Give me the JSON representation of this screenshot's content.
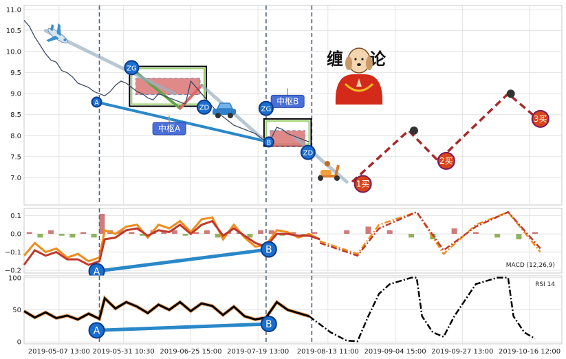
{
  "chart_data": [
    {
      "type": "line",
      "panel": "price",
      "ylim": [
        6.35,
        11.1
      ],
      "yticks": [
        "11.0",
        "10.5",
        "10.0",
        "9.5",
        "9.0",
        "8.5",
        "8.0",
        "7.5",
        "7.0"
      ],
      "ytick_values": [
        11.0,
        10.5,
        10.0,
        9.5,
        9.0,
        8.5,
        8.0,
        7.5,
        7.0
      ],
      "grid": true,
      "xrange": [
        0,
        100
      ],
      "vlines_dashed": [
        14,
        45,
        53.5
      ],
      "series": [
        {
          "role": "price-history",
          "color": "#3c4a66",
          "x": [
            0,
            1,
            2,
            3,
            4,
            5,
            6,
            7,
            8,
            9,
            10,
            11,
            12,
            13,
            14,
            15,
            16,
            17,
            18,
            19,
            20,
            21,
            22,
            23,
            24,
            25,
            26,
            27,
            28,
            29,
            30,
            31,
            32,
            33,
            34,
            35,
            36,
            37,
            38,
            39,
            40,
            41,
            42,
            43,
            44,
            45,
            46,
            47,
            48,
            49,
            50,
            51,
            52,
            53
          ],
          "y": [
            10.75,
            10.6,
            10.35,
            10.15,
            9.95,
            9.8,
            9.75,
            9.55,
            9.5,
            9.4,
            9.25,
            9.2,
            9.15,
            9.05,
            9.0,
            8.95,
            9.05,
            9.2,
            9.3,
            9.25,
            9.15,
            9.05,
            9.0,
            8.9,
            8.85,
            9.0,
            8.95,
            8.9,
            8.85,
            8.8,
            8.75,
            9.3,
            9.15,
            9.0,
            8.85,
            8.7,
            8.55,
            8.45,
            8.35,
            8.25,
            8.2,
            8.15,
            8.1,
            8.05,
            7.95,
            7.85,
            7.95,
            8.2,
            8.15,
            8.05,
            8.0,
            7.95,
            7.9,
            7.85
          ]
        },
        {
          "role": "projection",
          "color": "#a52a2a",
          "x": [
            61,
            71.5,
            77,
            90,
            95.5
          ],
          "y": [
            6.9,
            8.12,
            7.4,
            9.0,
            8.4
          ]
        }
      ],
      "stroke_segments": [
        {
          "color": "#2a88c8",
          "x": [
            13.5,
            45.5
          ],
          "y": [
            8.8,
            7.85
          ]
        },
        {
          "color": "#63a34a",
          "x": [
            20,
            29
          ],
          "y": [
            9.6,
            8.65
          ]
        },
        {
          "color": "#e06666",
          "x": [
            29,
            33
          ],
          "y": [
            8.65,
            9.2
          ]
        },
        {
          "color": "#9ab0c0",
          "x": [
            4,
            28
          ],
          "y": [
            10.5,
            9.0
          ]
        },
        {
          "color": "#9ab0c0",
          "x": [
            33,
            45
          ],
          "y": [
            9.2,
            7.85
          ]
        },
        {
          "color": "#9ab0c0",
          "x": [
            50.5,
            60
          ],
          "y": [
            7.95,
            6.9
          ]
        }
      ],
      "zones": [
        {
          "name": "中枢A",
          "x": [
            20,
            33.5
          ],
          "y": [
            8.75,
            9.6
          ],
          "fill": "#d96c6c"
        },
        {
          "name": "中枢B",
          "x": [
            45,
            53
          ],
          "y": [
            7.8,
            8.35
          ],
          "fill": "#d96c6c"
        }
      ],
      "points": [
        {
          "label": "A",
          "x": 13.5,
          "y": 8.8,
          "color": "#1a6ecf"
        },
        {
          "label": "ZG",
          "x": 20,
          "y": 9.62,
          "color": "#1a6ecf"
        },
        {
          "label": "ZD",
          "x": 33.5,
          "y": 8.68,
          "color": "#1a6ecf"
        },
        {
          "label": "ZG",
          "x": 45,
          "y": 8.65,
          "color": "#1a6ecf"
        },
        {
          "label": "B",
          "x": 45.5,
          "y": 7.85,
          "color": "#1a6ecf"
        },
        {
          "label": "ZD",
          "x": 52.8,
          "y": 7.6,
          "color": "#1a6ecf"
        },
        {
          "label": "1买",
          "x": 63,
          "y": 6.85,
          "color": "#d94418"
        },
        {
          "label": "",
          "x": 72.5,
          "y": 8.12,
          "color": "#333333"
        },
        {
          "label": "2买",
          "x": 78.5,
          "y": 7.4,
          "color": "#d94418"
        },
        {
          "label": "",
          "x": 90.5,
          "y": 9.0,
          "color": "#333333"
        },
        {
          "label": "3买",
          "x": 96,
          "y": 8.4,
          "color": "#d94418"
        }
      ],
      "annotations": [
        {
          "text": "中枢A",
          "x": 27,
          "y": 8.25
        },
        {
          "text": "中枢B",
          "x": 49,
          "y": 8.9
        }
      ],
      "title_glyphs": [
        "缠",
        "论"
      ],
      "icon_names": [
        "airplane-icon",
        "car-icon",
        "scooter-icon",
        "buddha-dog-icon"
      ]
    },
    {
      "type": "line",
      "panel": "macd",
      "ylim": [
        -0.215,
        0.14
      ],
      "yticks": [
        "0.1",
        "0.0",
        "−0.1",
        "−0.2"
      ],
      "ytick_values": [
        0.1,
        0.0,
        -0.1,
        -0.2
      ],
      "grid": true,
      "legend": "MACD (12,26,9)",
      "series": [
        {
          "name": "DIF",
          "color": "#f08c1a",
          "x": [
            0,
            2,
            4,
            6,
            8,
            10,
            12,
            14,
            15,
            17,
            19,
            21,
            23,
            25,
            27,
            29,
            31,
            33,
            35,
            37,
            39,
            41,
            43,
            45,
            47,
            49,
            51,
            53,
            55
          ],
          "y": [
            -0.12,
            -0.05,
            -0.1,
            -0.08,
            -0.13,
            -0.11,
            -0.15,
            -0.13,
            0.02,
            0.0,
            0.04,
            0.05,
            -0.02,
            0.05,
            0.03,
            0.07,
            0.01,
            0.08,
            0.09,
            -0.03,
            0.05,
            -0.02,
            -0.07,
            -0.06,
            0.02,
            0.01,
            -0.02,
            0.0,
            -0.03
          ]
        },
        {
          "name": "DEA",
          "color": "#c0392b",
          "x": [
            0,
            2,
            4,
            6,
            8,
            10,
            12,
            14,
            15,
            17,
            19,
            21,
            23,
            25,
            27,
            29,
            31,
            33,
            35,
            37,
            39,
            41,
            43,
            45,
            47,
            49,
            51,
            53,
            55
          ],
          "y": [
            -0.17,
            -0.09,
            -0.12,
            -0.1,
            -0.14,
            -0.14,
            -0.17,
            -0.15,
            -0.03,
            -0.02,
            0.02,
            0.03,
            -0.01,
            0.02,
            0.01,
            0.05,
            0.0,
            0.05,
            0.07,
            -0.01,
            0.03,
            -0.01,
            -0.05,
            -0.07,
            0.0,
            0.0,
            -0.01,
            -0.01,
            -0.03
          ]
        },
        {
          "name": "proj-DIF",
          "color": "#f08c1a",
          "dashed": true,
          "x": [
            55,
            62,
            66,
            73,
            78,
            84,
            90,
            96
          ],
          "y": [
            -0.04,
            -0.11,
            0.05,
            0.12,
            -0.11,
            0.05,
            0.12,
            -0.1
          ]
        },
        {
          "name": "proj-DEA",
          "color": "#c0392b",
          "dashed": true,
          "x": [
            55,
            62,
            66,
            73,
            78,
            84,
            90,
            96
          ],
          "y": [
            -0.05,
            -0.12,
            0.03,
            0.12,
            -0.09,
            0.04,
            0.12,
            -0.08
          ]
        }
      ],
      "bars": {
        "x": [
          1,
          3,
          5,
          7,
          9,
          11,
          13,
          14.5,
          16,
          18,
          20,
          22,
          24,
          26,
          28,
          30,
          32,
          34,
          36,
          38,
          40,
          42,
          44,
          46,
          48,
          50,
          52,
          54,
          60,
          64,
          68,
          72,
          76,
          80,
          84,
          88,
          92,
          95
        ],
        "y": [
          0.01,
          -0.02,
          0.02,
          -0.01,
          -0.02,
          0.01,
          -0.02,
          0.11,
          0.02,
          0.02,
          0.01,
          -0.01,
          0.02,
          0.01,
          0.02,
          -0.01,
          0.01,
          0.02,
          -0.02,
          0.01,
          0.01,
          -0.02,
          0.02,
          0.02,
          -0.01,
          0.01,
          -0.01,
          0.01,
          0.02,
          0.04,
          0.02,
          -0.02,
          -0.03,
          0.03,
          0.01,
          -0.02,
          -0.03,
          0.01
        ],
        "pos_color": "#c05050",
        "neg_color": "#6a9a2a"
      },
      "divergence": {
        "x": [
          13.5,
          45.5
        ],
        "y": [
          -0.205,
          -0.085
        ],
        "labels": [
          "A",
          "B"
        ],
        "color": "#2a88c8"
      }
    },
    {
      "type": "line",
      "panel": "rsi",
      "ylim": [
        -3,
        103
      ],
      "yticks": [
        "100",
        "50",
        "0"
      ],
      "ytick_values": [
        100,
        50,
        0
      ],
      "grid": true,
      "legend": "RSI 14",
      "series": [
        {
          "name": "RSI",
          "color": "#000000",
          "x": [
            0,
            2,
            4,
            6,
            8,
            10,
            12,
            14,
            15,
            17,
            19,
            21,
            23,
            25,
            27,
            29,
            31,
            33,
            35,
            37,
            39,
            41,
            43,
            45,
            47,
            49,
            51,
            53
          ],
          "y": [
            48,
            38,
            46,
            37,
            41,
            35,
            44,
            36,
            68,
            52,
            62,
            55,
            45,
            58,
            50,
            62,
            48,
            60,
            56,
            42,
            55,
            40,
            35,
            38,
            62,
            50,
            45,
            40
          ]
        },
        {
          "name": "proj-RSI",
          "color": "#000000",
          "dashed": true,
          "x": [
            53,
            57,
            60,
            62,
            64,
            66,
            68,
            72,
            73,
            74,
            76,
            78,
            80,
            84,
            88,
            90,
            91,
            93,
            95
          ],
          "y": [
            40,
            15,
            2,
            1,
            40,
            75,
            90,
            100,
            100,
            40,
            15,
            8,
            40,
            90,
            100,
            100,
            40,
            15,
            5
          ]
        }
      ],
      "divergence": {
        "x": [
          13.5,
          45.5
        ],
        "y": [
          18,
          28
        ],
        "labels": [
          "A",
          "B"
        ],
        "color": "#2a88c8"
      }
    }
  ],
  "xticks": [
    "2019-05-07 13:00",
    "2019-05-31 10:30",
    "2019-06-25 15:00",
    "2019-07-19 13:00",
    "2019-08-13 11:00",
    "2019-09-04 15:00",
    "2019-09-27 13:00",
    "2019-10-16 12:00"
  ],
  "xtick_values": [
    6.5,
    18.5,
    31,
    43.5,
    56.5,
    69,
    81.5,
    94
  ]
}
